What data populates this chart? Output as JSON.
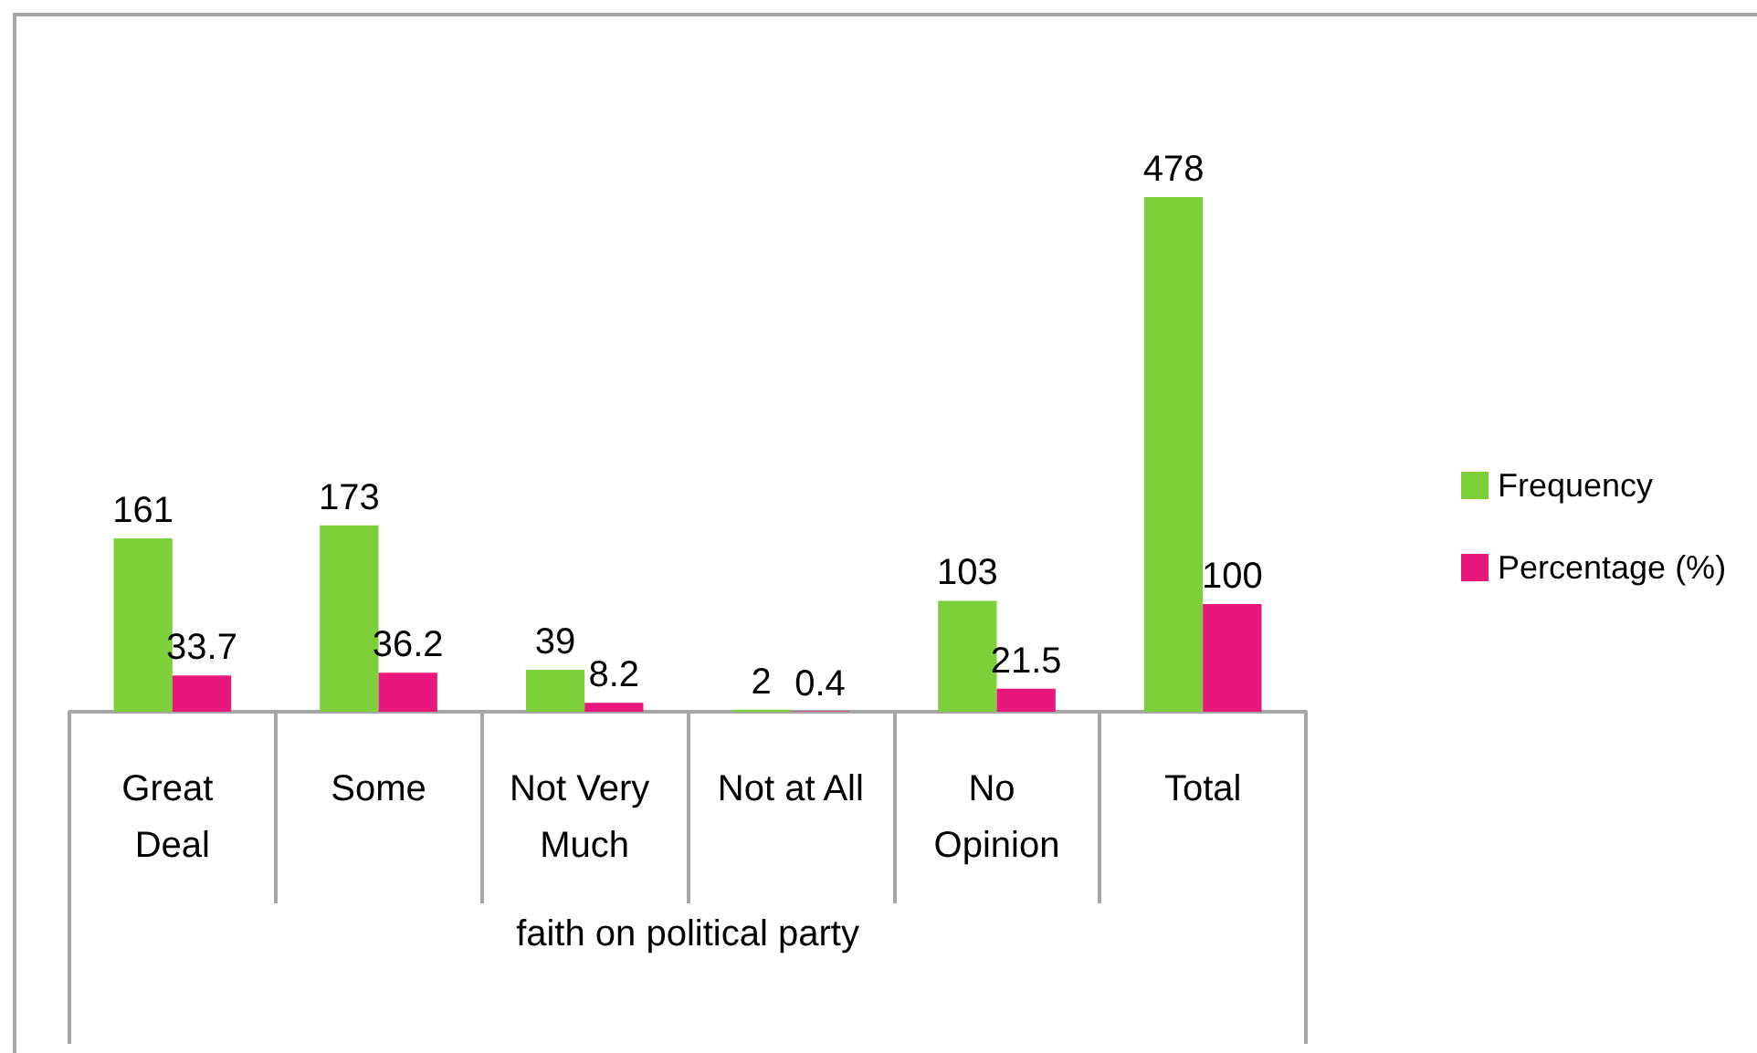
{
  "chart_data": {
    "type": "bar",
    "xlabel": "faith on political party",
    "categories": [
      "Great Deal",
      "Some",
      "Not Very Much",
      "Not at All",
      "No Opinion",
      "Total"
    ],
    "series": [
      {
        "name": "Frequency",
        "color": "#7ed03b",
        "values": [
          161,
          173,
          39,
          2,
          103,
          478
        ]
      },
      {
        "name": "Percentage (%)",
        "color": "#e8177b",
        "values": [
          33.7,
          36.2,
          8.2,
          0.4,
          21.5,
          100
        ]
      }
    ],
    "data_labels": true,
    "legend": "right"
  }
}
